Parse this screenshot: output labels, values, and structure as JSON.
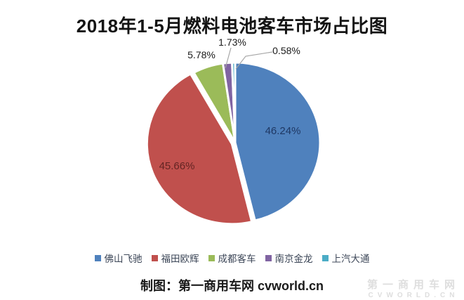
{
  "chart_data": {
    "type": "pie",
    "title": "2018年1-5月燃料电池客车市场占比图",
    "labels": [
      "佛山飞驰",
      "福田欧辉",
      "成都客车",
      "南京金龙",
      "上汽大通"
    ],
    "values": [
      46.24,
      45.66,
      5.78,
      1.73,
      0.58
    ],
    "value_labels": [
      "46.24%",
      "45.66%",
      "5.78%",
      "1.73%",
      "0.58%"
    ],
    "colors": [
      "#4F81BD",
      "#C0504D",
      "#9BBB59",
      "#8064A2",
      "#4BACC6"
    ],
    "value_label_colors": [
      "#1F3864",
      "#632423",
      "#1a1a1a",
      "#1a1a1a",
      "#1a1a1a"
    ],
    "legend_position": "bottom",
    "start_angle": "top",
    "direction": "clockwise"
  },
  "footer": {
    "caption": "制图：第一商用车网 cvworld.cn"
  },
  "watermark": {
    "line1": "第一商用车网",
    "line2": "cvworld.cn"
  }
}
